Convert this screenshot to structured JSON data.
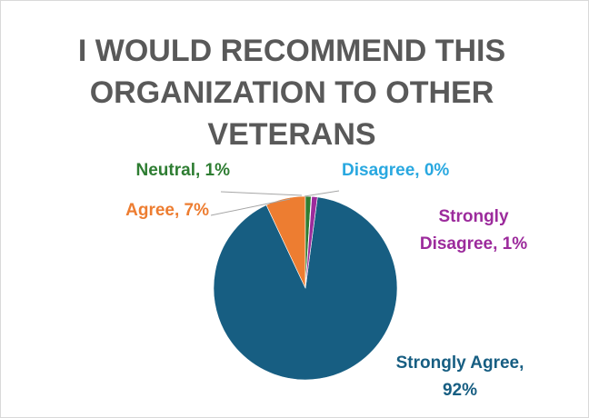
{
  "chart_data": {
    "type": "pie",
    "title": "I WOULD RECOMMEND THIS ORGANIZATION TO OTHER VETERANS",
    "slices": [
      {
        "label": "Strongly Agree",
        "value": 92,
        "display": "Strongly Agree, 92%",
        "color": "#175e82"
      },
      {
        "label": "Agree",
        "value": 7,
        "display": "Agree, 7%",
        "color": "#ed7d31"
      },
      {
        "label": "Neutral",
        "value": 1,
        "display": "Neutral, 1%",
        "color": "#2e7d32"
      },
      {
        "label": "Disagree",
        "value": 0,
        "display": "Disagree, 0%",
        "color": "#29a8e0"
      },
      {
        "label": "Strongly Disagree",
        "value": 1,
        "display": "Strongly Disagree, 1%",
        "color": "#9c2b9c"
      }
    ]
  }
}
